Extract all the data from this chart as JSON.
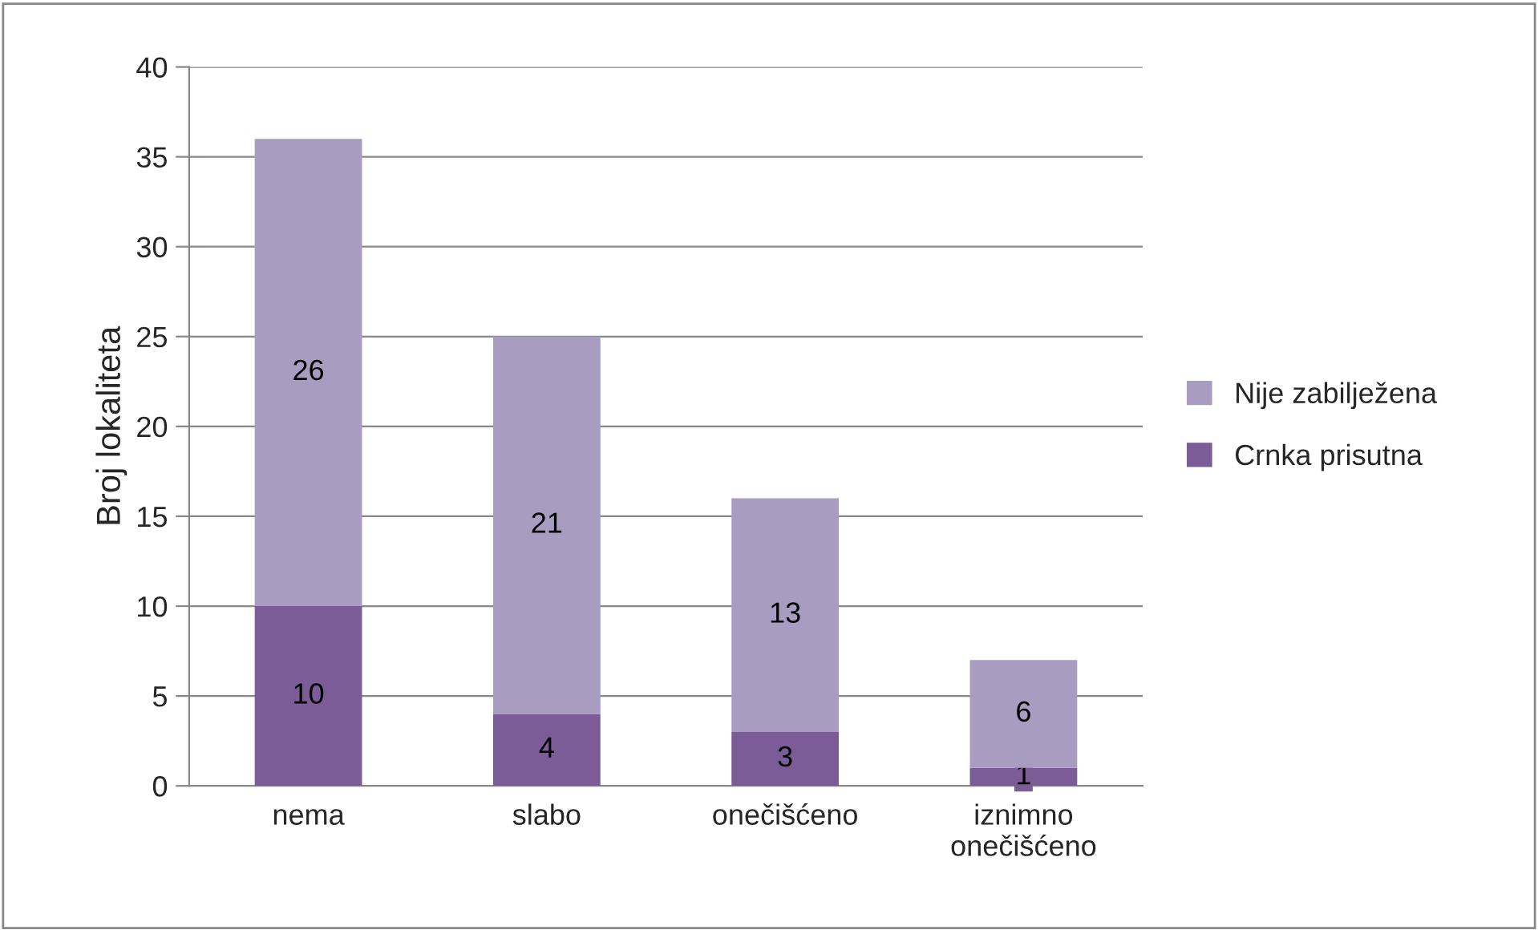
{
  "chart_data": {
    "type": "bar",
    "ylabel": "Broj lokaliteta",
    "categories": [
      "nema",
      "slabo",
      "onečišćeno",
      "iznimno\nonečišćeno"
    ],
    "stacked": true,
    "series": [
      {
        "name": "Crnka prisutna",
        "color": "#7b5c97",
        "values": [
          10,
          4,
          3,
          1
        ]
      },
      {
        "name": "Nije zabilježena",
        "color": "#a99cc1",
        "values": [
          26,
          21,
          13,
          6
        ]
      }
    ],
    "ylim": [
      0,
      40
    ],
    "yticks": [
      0,
      5,
      10,
      15,
      20,
      25,
      30,
      35,
      40
    ],
    "grid": "y",
    "legend": "right",
    "data_labels": true
  }
}
